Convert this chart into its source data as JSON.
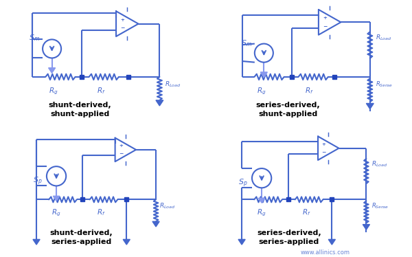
{
  "bg": "#ffffff",
  "lc": "#4466cc",
  "lc_fb": "#8899ee",
  "nc": "#2244bb",
  "lw": 1.5,
  "lw_fb": 1.5,
  "titles": [
    "shunt-derived,\nshunt-applied",
    "series-derived,\nshunt-applied",
    "shunt-derived,\nseries-applied",
    "series-derived,\nseries-applied"
  ],
  "watermark": "www.allinics.com",
  "fig_width": 6.0,
  "fig_height": 3.74
}
